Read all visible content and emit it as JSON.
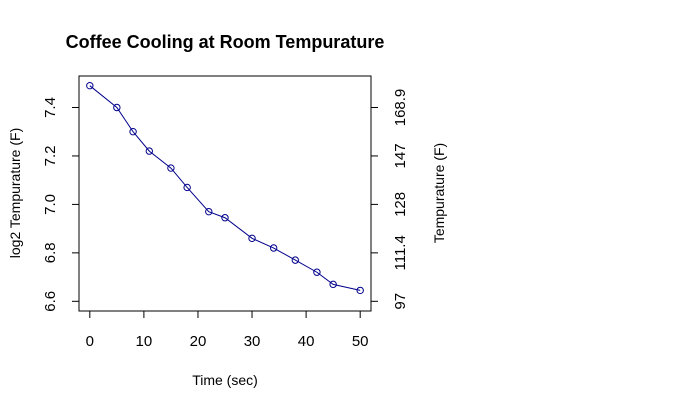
{
  "chart_data": {
    "type": "line",
    "title": "Coffee Cooling at Room Tempurature",
    "xlabel": "Time (sec)",
    "ylabel": "log2 Tempurature (F)",
    "y2label": "Tempurature (F)",
    "xlim": [
      -2,
      52
    ],
    "ylim": [
      6.56,
      7.53
    ],
    "x_ticks": [
      0,
      10,
      20,
      30,
      40,
      50
    ],
    "y_ticks": [
      6.6,
      6.8,
      7.0,
      7.2,
      7.4
    ],
    "y_tick_labels": [
      "6.6",
      "6.8",
      "7.0",
      "7.2",
      "7.4"
    ],
    "y2_ticks_log2": [
      6.6,
      6.8,
      7.0,
      7.2,
      7.4
    ],
    "y2_tick_labels": [
      "97",
      "111.4",
      "128",
      "147",
      "168.9"
    ],
    "grid": false,
    "legend": "none",
    "series": [
      {
        "color": "#00008b",
        "marker": "open-circle",
        "x": [
          0,
          5,
          8,
          11,
          15,
          18,
          22,
          25,
          30,
          34,
          38,
          42,
          45,
          50
        ],
        "y": [
          7.49,
          7.4,
          7.3,
          7.22,
          7.15,
          7.07,
          6.97,
          6.945,
          6.86,
          6.82,
          6.77,
          6.72,
          6.67,
          6.645
        ]
      }
    ]
  }
}
